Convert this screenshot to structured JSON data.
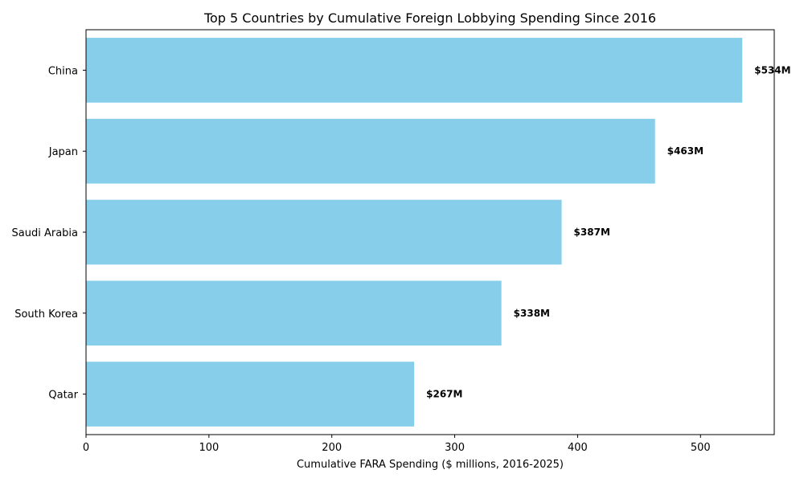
{
  "chart_data": {
    "type": "bar",
    "orientation": "horizontal",
    "title": "Top 5 Countries by Cumulative Foreign Lobbying Spending Since 2016",
    "xlabel": "Cumulative FARA Spending ($ millions, 2016-2025)",
    "ylabel": "",
    "categories": [
      "China",
      "Japan",
      "Saudi Arabia",
      "South Korea",
      "Qatar"
    ],
    "values": [
      534,
      463,
      387,
      338,
      267
    ],
    "data_labels": [
      "$534M",
      "$463M",
      "$387M",
      "$338M",
      "$267M"
    ],
    "xlim": [
      0,
      560
    ],
    "xticks": [
      0,
      100,
      200,
      300,
      400,
      500
    ],
    "xtick_labels": [
      "0",
      "100",
      "200",
      "300",
      "400",
      "500"
    ],
    "grid": false,
    "bar_color": "#87CEEB"
  }
}
